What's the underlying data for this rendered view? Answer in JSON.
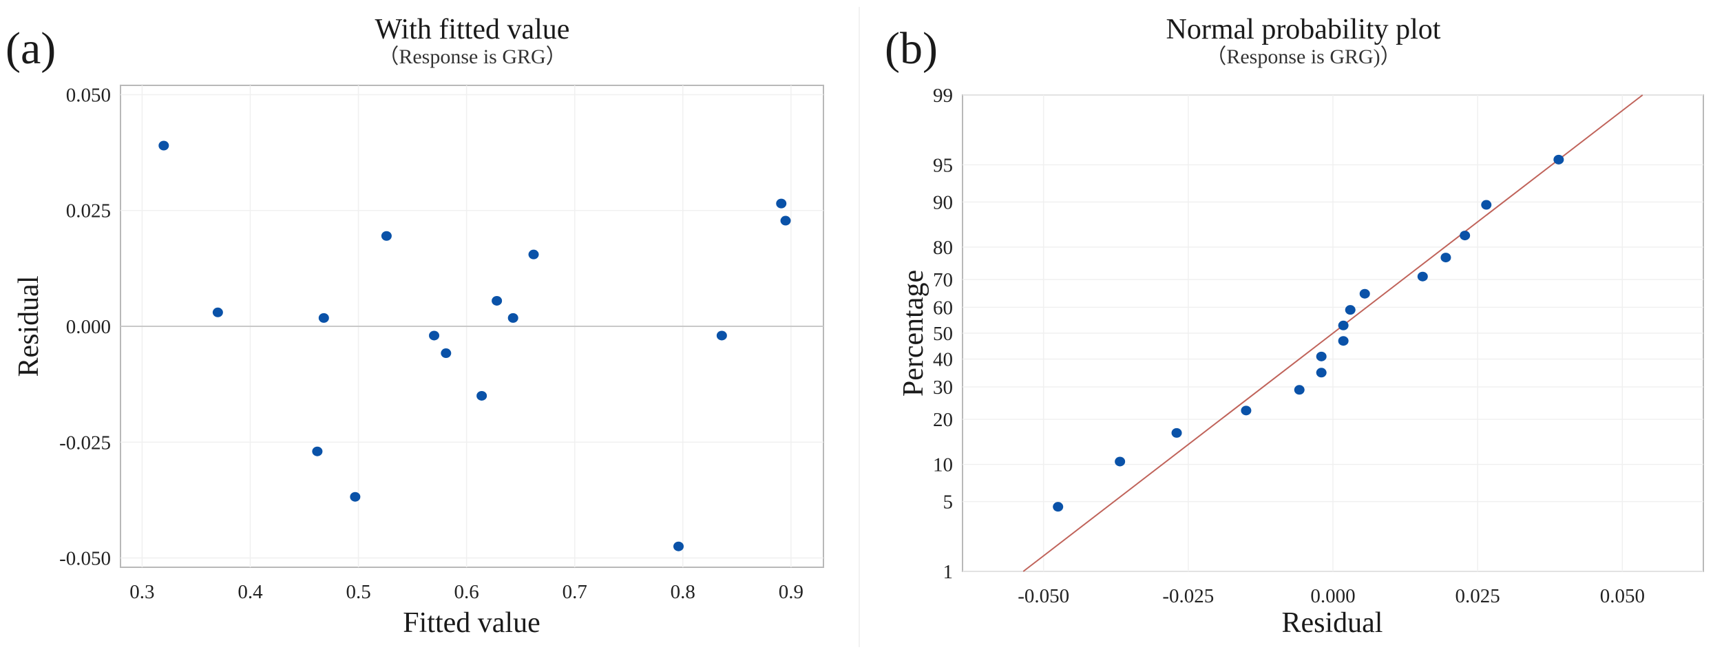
{
  "colors": {
    "point": "#0a52a8",
    "fit_line": "#c0635a",
    "frame": "#b8b8b8"
  },
  "chart_data": [
    {
      "panel": "(a)",
      "type": "scatter",
      "title": "With fitted value",
      "subtitle": "（Response is GRG）",
      "xlabel": "Fitted value",
      "ylabel": "Residual",
      "xlim": [
        0.28,
        0.93
      ],
      "ylim": [
        -0.052,
        0.052
      ],
      "x_ticks": [
        0.3,
        0.4,
        0.5,
        0.6,
        0.7,
        0.8,
        0.9
      ],
      "x_tick_labels": [
        "0.3",
        "0.4",
        "0.5",
        "0.6",
        "0.7",
        "0.8",
        "0.9"
      ],
      "y_ticks": [
        -0.05,
        -0.025,
        0.0,
        0.025,
        0.05
      ],
      "y_tick_labels": [
        "-0.050",
        "-0.025",
        "0.000",
        "0.025",
        "0.050"
      ],
      "reference_line_y": 0,
      "points": [
        {
          "x": 0.32,
          "y": 0.039
        },
        {
          "x": 0.37,
          "y": 0.003
        },
        {
          "x": 0.462,
          "y": -0.027
        },
        {
          "x": 0.468,
          "y": 0.0018
        },
        {
          "x": 0.497,
          "y": -0.0368
        },
        {
          "x": 0.526,
          "y": 0.0195
        },
        {
          "x": 0.57,
          "y": -0.002
        },
        {
          "x": 0.581,
          "y": -0.0058
        },
        {
          "x": 0.614,
          "y": -0.015
        },
        {
          "x": 0.628,
          "y": 0.0055
        },
        {
          "x": 0.643,
          "y": 0.0018
        },
        {
          "x": 0.662,
          "y": 0.0155
        },
        {
          "x": 0.796,
          "y": -0.0475
        },
        {
          "x": 0.836,
          "y": -0.002
        },
        {
          "x": 0.891,
          "y": 0.0265
        },
        {
          "x": 0.895,
          "y": 0.0228
        }
      ]
    },
    {
      "panel": "(b)",
      "type": "scatter",
      "title": "Normal probability plot",
      "subtitle": "（Response is GRG)）",
      "xlabel": "Residual",
      "ylabel": "Percentage",
      "xlim": [
        -0.064,
        0.064
      ],
      "ylim": [
        1,
        99
      ],
      "y_scale": "normal-probability",
      "x_ticks": [
        -0.05,
        -0.025,
        0.0,
        0.025,
        0.05
      ],
      "x_tick_labels": [
        "-0.050",
        "-0.025",
        "0.000",
        "0.025",
        "0.050"
      ],
      "y_ticks": [
        1,
        5,
        10,
        20,
        30,
        40,
        50,
        60,
        70,
        80,
        90,
        95,
        99
      ],
      "y_tick_labels": [
        "1",
        "5",
        "10",
        "20",
        "30",
        "40",
        "50",
        "60",
        "70",
        "80",
        "90",
        "95",
        "99"
      ],
      "fit_line": {
        "x1": -0.0535,
        "y1": 1,
        "x2": 0.0535,
        "y2": 99
      },
      "points": [
        {
          "x": -0.0475,
          "y": 4.5
        },
        {
          "x": -0.0368,
          "y": 10.5
        },
        {
          "x": -0.027,
          "y": 16.5
        },
        {
          "x": -0.015,
          "y": 22.5
        },
        {
          "x": -0.0058,
          "y": 29
        },
        {
          "x": -0.002,
          "y": 35
        },
        {
          "x": -0.002,
          "y": 41
        },
        {
          "x": 0.0018,
          "y": 47
        },
        {
          "x": 0.0018,
          "y": 53
        },
        {
          "x": 0.003,
          "y": 59
        },
        {
          "x": 0.0055,
          "y": 65
        },
        {
          "x": 0.0155,
          "y": 71
        },
        {
          "x": 0.0195,
          "y": 77
        },
        {
          "x": 0.0228,
          "y": 83
        },
        {
          "x": 0.0265,
          "y": 89.5
        },
        {
          "x": 0.039,
          "y": 95.5
        }
      ]
    }
  ]
}
